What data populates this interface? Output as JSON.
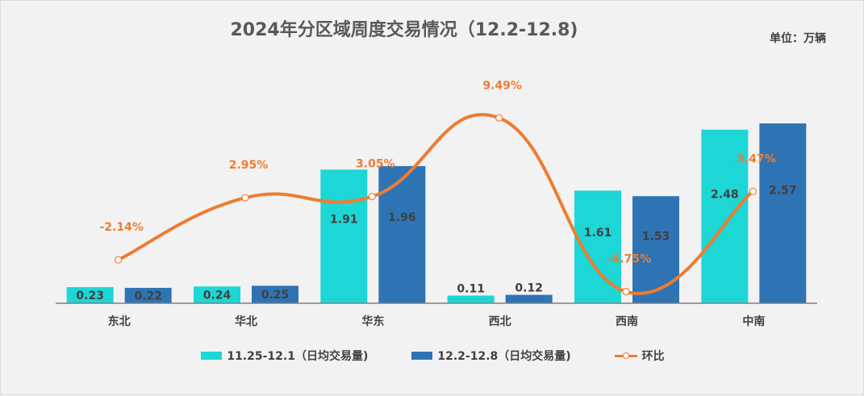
{
  "chart_data": {
    "type": "bar",
    "title": "2024年分区域周度交易情况（12.2-12.8)",
    "unit_label": "单位：万辆",
    "categories": [
      "东北",
      "华北",
      "华东",
      "西北",
      "西南",
      "中南"
    ],
    "series": [
      {
        "name": "11.25-12.1（日均交易量)",
        "values": [
          0.23,
          0.24,
          1.91,
          0.11,
          1.61,
          2.48
        ],
        "color": "#1dd6d6"
      },
      {
        "name": "12.2-12.8（日均交易量)",
        "values": [
          0.22,
          0.25,
          1.96,
          0.12,
          1.53,
          2.57
        ],
        "color": "#2e74b5"
      }
    ],
    "line_series": {
      "name": "环比",
      "values": [
        -2.14,
        2.95,
        3.05,
        9.49,
        -4.75,
        3.47
      ],
      "labels": [
        "-2.14%",
        "2.95%",
        "3.05%",
        "9.49%",
        "-4.75%",
        "3.47%"
      ],
      "color": "#ed7d31"
    },
    "ylim": [
      0,
      2.75
    ],
    "line_ylim": [
      -5.5,
      10.5
    ],
    "legend_position": "bottom"
  }
}
